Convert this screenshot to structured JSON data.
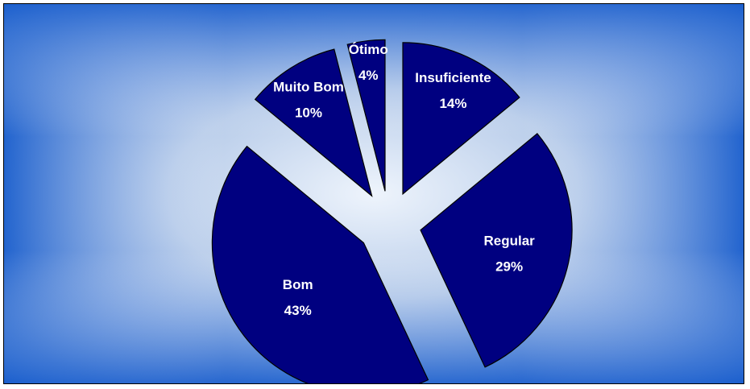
{
  "chart_data": {
    "type": "pie",
    "title": "",
    "exploded": true,
    "colors": {
      "slice": "#000080",
      "label": "#ffffff",
      "background_center": "#e8f0fb",
      "background_edge": "#1558c8"
    },
    "slices": [
      {
        "label": "Insuficiente",
        "value": 14,
        "value_text": "14%"
      },
      {
        "label": "Regular",
        "value": 29,
        "value_text": "29%"
      },
      {
        "label": "Bom",
        "value": 43,
        "value_text": "43%"
      },
      {
        "label": "Muito Bom",
        "value": 10,
        "value_text": "10%"
      },
      {
        "label": "Ótimo",
        "value": 4,
        "value_text": "4%"
      }
    ]
  }
}
